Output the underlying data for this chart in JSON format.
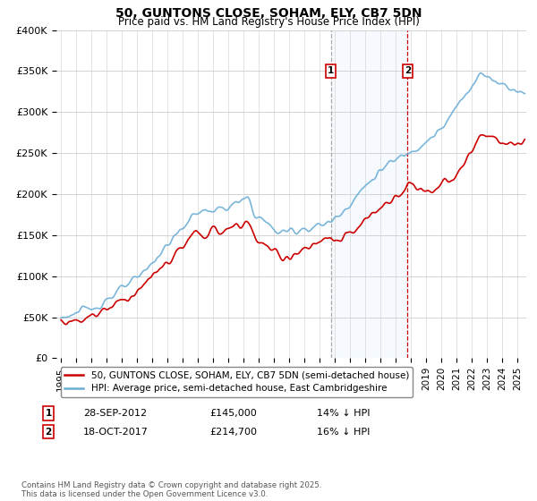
{
  "title1": "50, GUNTONS CLOSE, SOHAM, ELY, CB7 5DN",
  "title2": "Price paid vs. HM Land Registry's House Price Index (HPI)",
  "legend_property": "50, GUNTONS CLOSE, SOHAM, ELY, CB7 5DN (semi-detached house)",
  "legend_hpi": "HPI: Average price, semi-detached house, East Cambridgeshire",
  "footnote": "Contains HM Land Registry data © Crown copyright and database right 2025.\nThis data is licensed under the Open Government Licence v3.0.",
  "transaction1_date": "28-SEP-2012",
  "transaction1_price": "£145,000",
  "transaction1_hpi": "14% ↓ HPI",
  "transaction2_date": "18-OCT-2017",
  "transaction2_price": "£214,700",
  "transaction2_hpi": "16% ↓ HPI",
  "ylim": [
    0,
    400000
  ],
  "yticks": [
    0,
    50000,
    100000,
    150000,
    200000,
    250000,
    300000,
    350000,
    400000
  ],
  "ytick_labels": [
    "£0",
    "£50K",
    "£100K",
    "£150K",
    "£200K",
    "£250K",
    "£300K",
    "£350K",
    "£400K"
  ],
  "hpi_color": "#6baed6",
  "property_color": "#cc0000",
  "transaction1_x": 2012.75,
  "transaction2_x": 2017.79,
  "t1_y": 145000,
  "t2_y": 214700,
  "vline1_color": "#999999",
  "vline2_color": "#cc0000",
  "shade_color": "#ddeeff",
  "xlim_start": 1995.0,
  "xlim_end": 2025.5
}
